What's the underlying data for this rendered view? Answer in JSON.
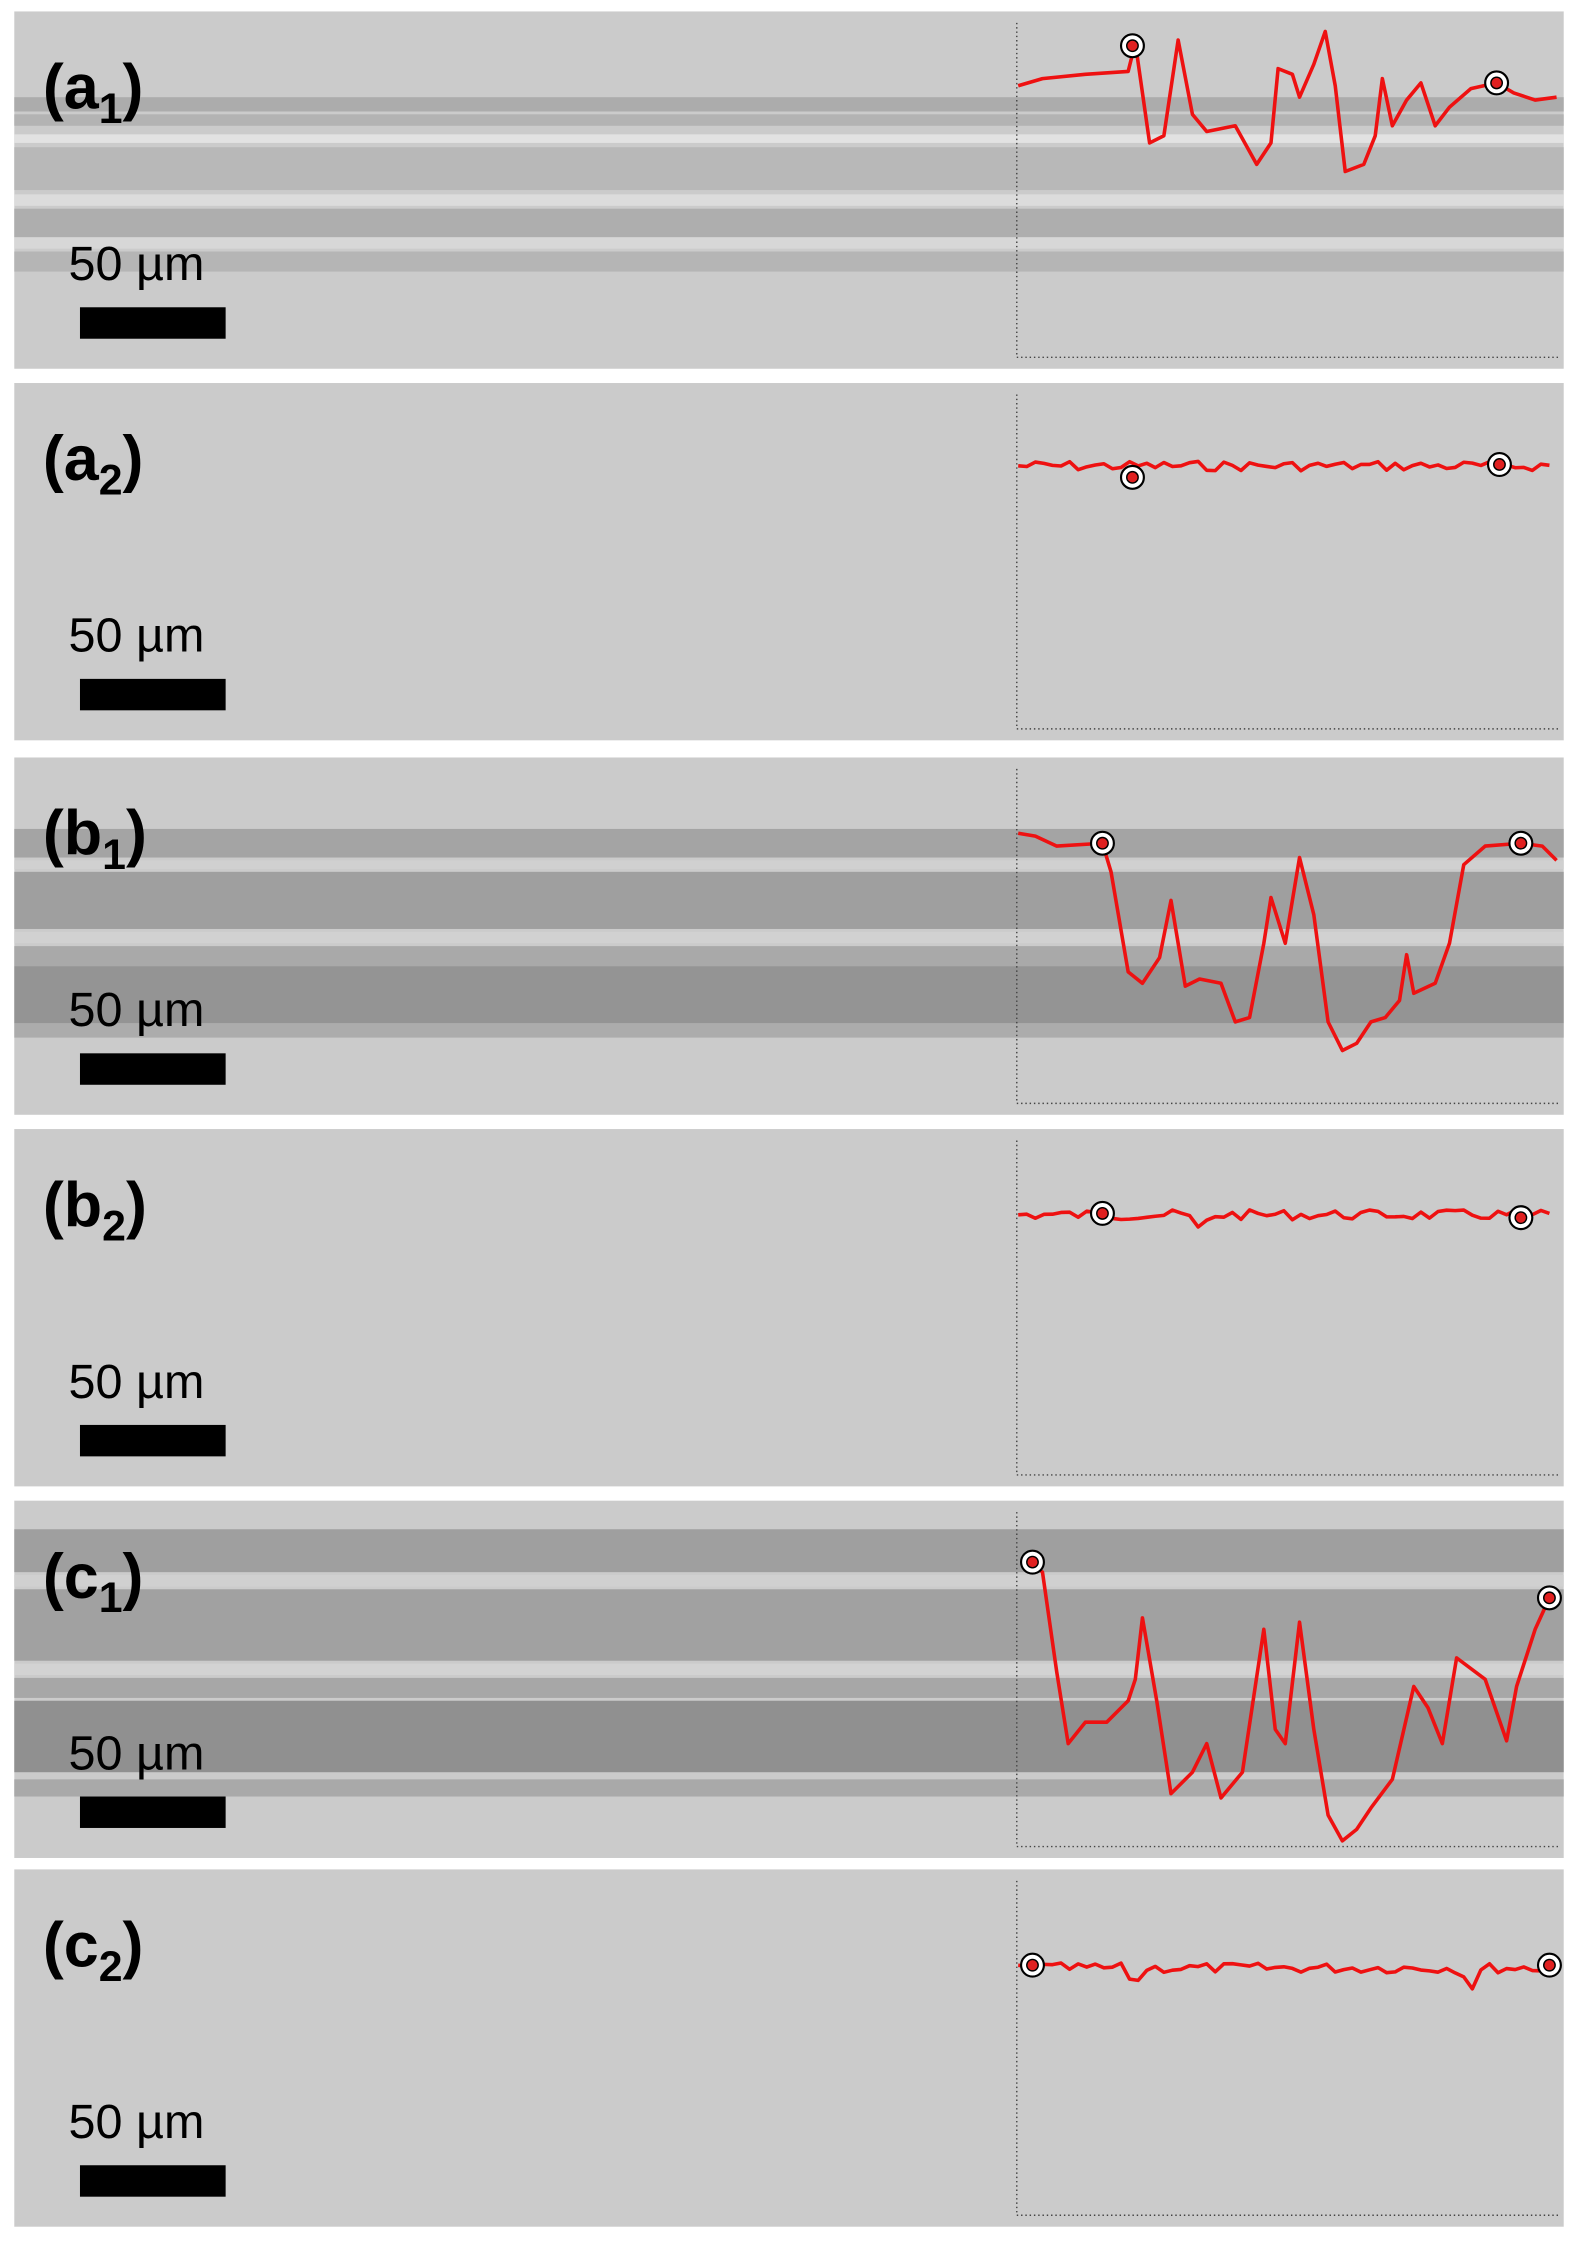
{
  "panels": [
    {
      "label": {
        "open": "(a",
        "sub": "1",
        "close": ")"
      },
      "scale": "50 µm"
    },
    {
      "label": {
        "open": "(a",
        "sub": "2",
        "close": ")"
      },
      "scale": "50 µm"
    },
    {
      "label": {
        "open": "(b",
        "sub": "1",
        "close": ")"
      },
      "scale": "50 µm"
    },
    {
      "label": {
        "open": "(b",
        "sub": "2",
        "close": ")"
      },
      "scale": "50 µm"
    },
    {
      "label": {
        "open": "(c",
        "sub": "1",
        "close": ")"
      },
      "scale": "50 µm"
    },
    {
      "label": {
        "open": "(c",
        "sub": "2",
        "close": ")"
      },
      "scale": "50 µm"
    }
  ]
}
